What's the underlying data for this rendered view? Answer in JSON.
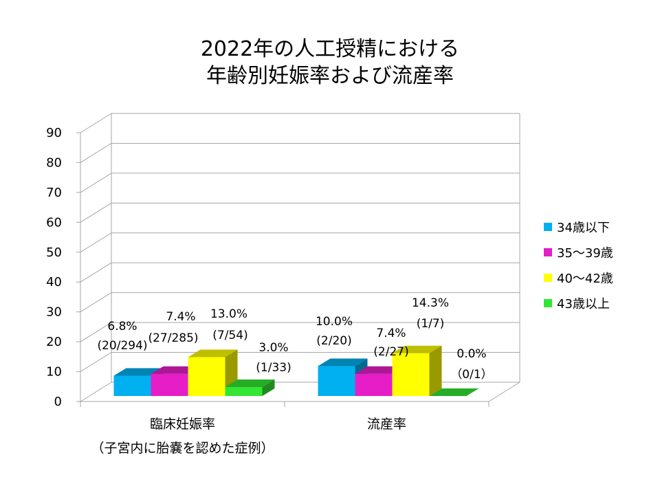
{
  "chart_data": {
    "type": "bar",
    "title": [
      "2022年の人工授精における",
      "年齢別妊娠率および流産率"
    ],
    "categories": [
      {
        "label": "臨床妊娠率",
        "sublabel": "（子宮内に胎嚢を認めた症例）"
      },
      {
        "label": "流産率",
        "sublabel": ""
      }
    ],
    "series": [
      {
        "name": "34歳以下",
        "color": "#00b0f0",
        "values": [
          6.8,
          10.0
        ],
        "labels": [
          [
            "6.8%",
            "(20/294)"
          ],
          [
            "10.0%",
            "(2/20)"
          ]
        ]
      },
      {
        "name": "35〜39歳",
        "color": "#e61ec8",
        "values": [
          7.4,
          7.4
        ],
        "labels": [
          [
            "7.4%",
            "(27/285)"
          ],
          [
            "7.4%",
            "(2/27)"
          ]
        ]
      },
      {
        "name": "40〜42歳",
        "color": "#ffff00",
        "values": [
          13.0,
          14.3
        ],
        "labels": [
          [
            "13.0%",
            "(7/54)"
          ],
          [
            "14.3%",
            "(1/7)"
          ]
        ]
      },
      {
        "name": "43歳以上",
        "color": "#33e633",
        "values": [
          3.0,
          0.0
        ],
        "labels": [
          [
            "3.0%",
            "(1/33)"
          ],
          [
            "0.0%",
            "（0/1）"
          ]
        ]
      }
    ],
    "ylim": [
      0,
      90
    ],
    "yticks": [
      0,
      10,
      20,
      30,
      40,
      50,
      60,
      70,
      80,
      90
    ],
    "grid": true,
    "legend": "right",
    "projection": "3d"
  }
}
